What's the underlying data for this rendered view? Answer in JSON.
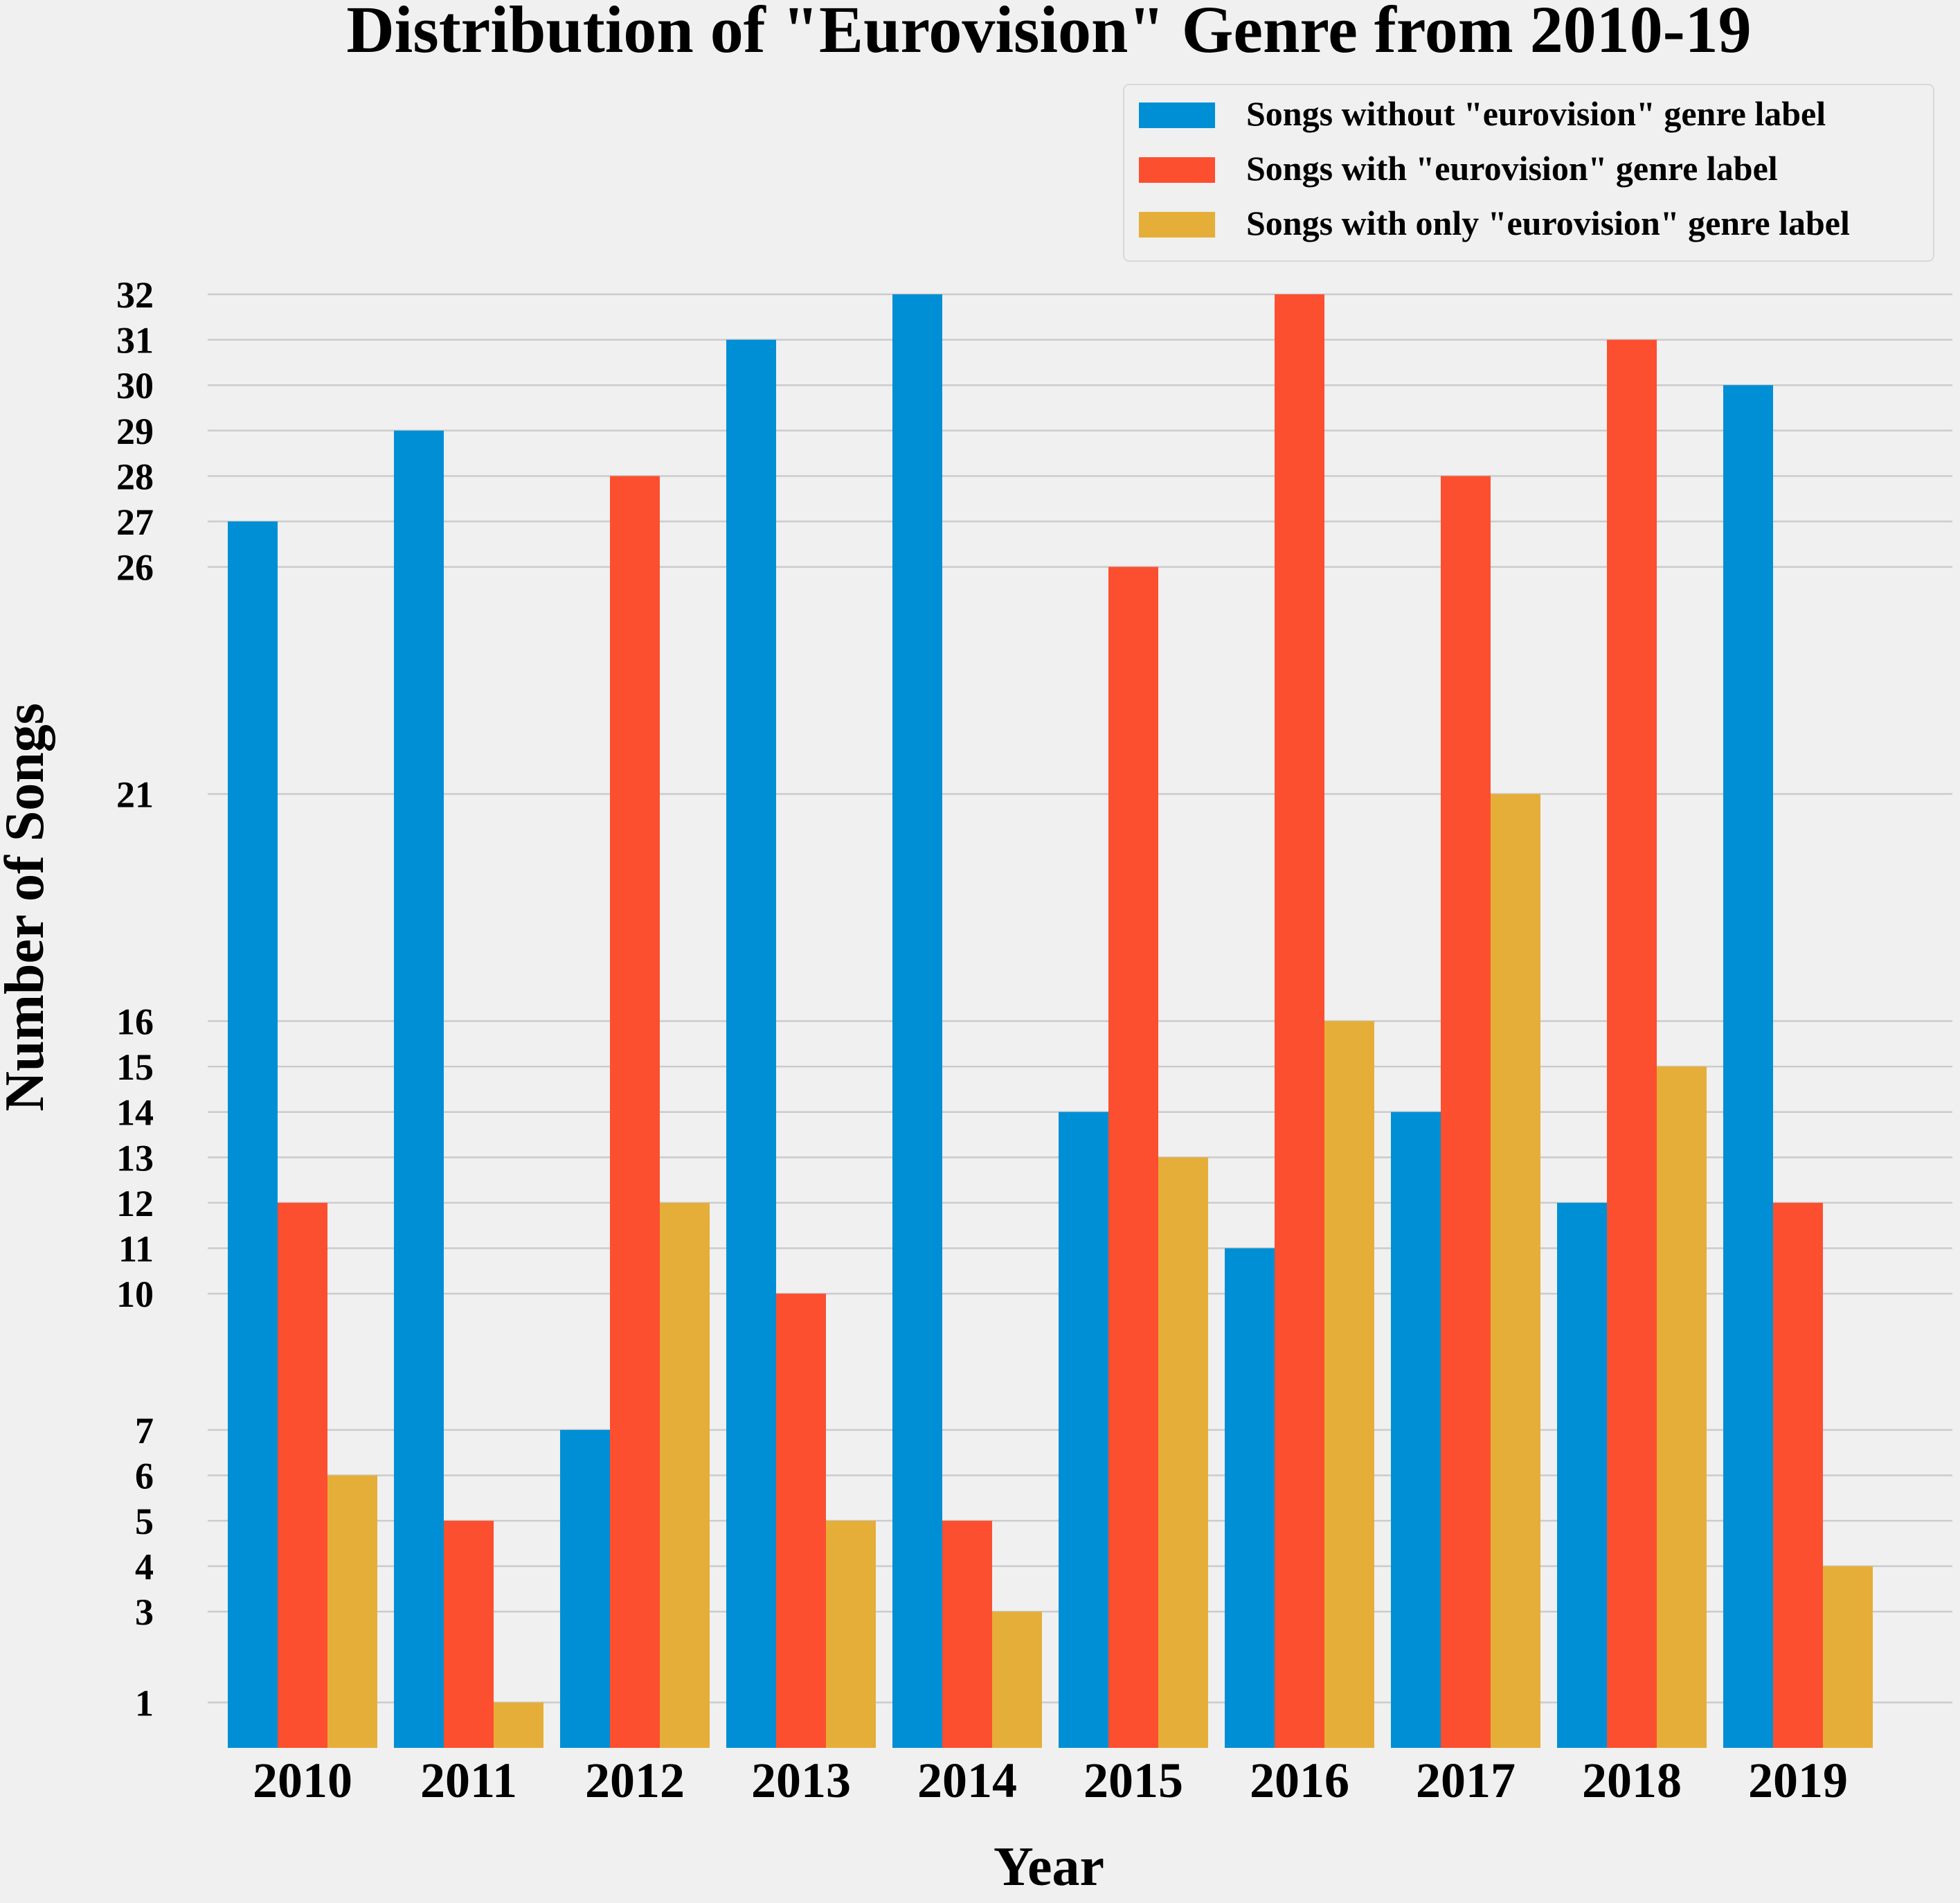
{
  "chart_data": {
    "type": "bar",
    "title": "Distribution of \"Eurovision\" Genre from 2010-19",
    "xlabel": "Year",
    "ylabel": "Number of Songs",
    "categories": [
      "2010",
      "2011",
      "2012",
      "2013",
      "2014",
      "2015",
      "2016",
      "2017",
      "2018",
      "2019"
    ],
    "series": [
      {
        "name": "Songs without \"eurovision\" genre label",
        "color": "#008fd5",
        "values": [
          27,
          29,
          7,
          31,
          32,
          14,
          11,
          14,
          12,
          30
        ]
      },
      {
        "name": "Songs with \"eurovision\" genre label",
        "color": "#fc4f30",
        "values": [
          12,
          5,
          28,
          10,
          5,
          26,
          32,
          28,
          31,
          12
        ]
      },
      {
        "name": "Songs with only \"eurovision\" genre label",
        "color": "#e5ae38",
        "values": [
          6,
          1,
          12,
          5,
          3,
          13,
          16,
          21,
          15,
          4
        ]
      }
    ],
    "yticks": [
      1,
      3,
      4,
      5,
      6,
      7,
      10,
      11,
      12,
      13,
      14,
      15,
      16,
      21,
      26,
      27,
      28,
      29,
      30,
      31,
      32
    ],
    "ylim": [
      0,
      32
    ],
    "grid": true,
    "legend_position": "top-right",
    "background": "#f0f0f0"
  }
}
